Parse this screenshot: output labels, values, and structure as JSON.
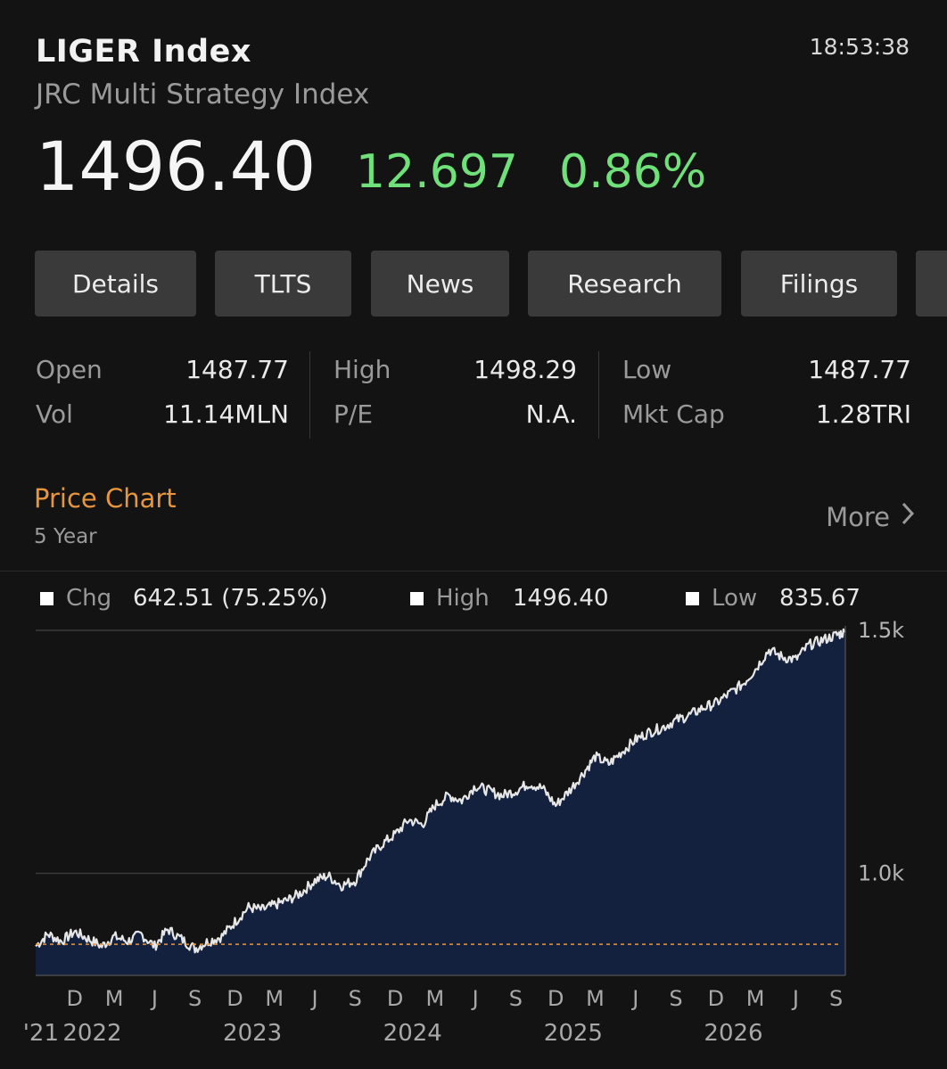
{
  "header": {
    "ticker": "LIGER Index",
    "name": "JRC Multi Strategy Index",
    "time": "18:53:38",
    "price": "1496.40",
    "change": "12.697",
    "change_pct": "0.86%",
    "change_color": "#6fe07a"
  },
  "tabs": [
    {
      "label": "Details"
    },
    {
      "label": "TLTS"
    },
    {
      "label": "News"
    },
    {
      "label": "Research"
    },
    {
      "label": "Filings"
    }
  ],
  "stats": {
    "open_label": "Open",
    "open": "1487.77",
    "high_label": "High",
    "high": "1498.29",
    "low_label": "Low",
    "low": "1487.77",
    "vol_label": "Vol",
    "vol": "11.14MLN",
    "pe_label": "P/E",
    "pe": "N.A.",
    "mktcap_label": "Mkt Cap",
    "mktcap": "1.28TRI"
  },
  "section": {
    "title": "Price Chart",
    "title_color": "#e8963c",
    "period": "5 Year",
    "more_label": "More",
    "more_icon": "chevron-right-icon"
  },
  "chart_stats": {
    "chg_label": "Chg",
    "chg_value": "642.51 (75.25%)",
    "high_label": "High",
    "high_value": "1496.40",
    "low_label": "Low",
    "low_value": "835.67"
  },
  "chart_data": {
    "type": "area",
    "title": "",
    "xlabel": "",
    "ylabel": "",
    "ylim": [
      790,
      1500
    ],
    "yticks": [
      1000,
      1500
    ],
    "ytick_labels": [
      "1.0k",
      "1.5k"
    ],
    "xlim": [
      "2021-09-03",
      "2026-09-22"
    ],
    "xticks": [
      {
        "date": "2021-12-01",
        "label": "D"
      },
      {
        "date": "2022-03-01",
        "label": "M"
      },
      {
        "date": "2022-06-01",
        "label": "J"
      },
      {
        "date": "2022-09-01",
        "label": "S"
      },
      {
        "date": "2022-12-01",
        "label": "D"
      },
      {
        "date": "2023-03-01",
        "label": "M"
      },
      {
        "date": "2023-06-01",
        "label": "J"
      },
      {
        "date": "2023-09-01",
        "label": "S"
      },
      {
        "date": "2023-12-01",
        "label": "D"
      },
      {
        "date": "2024-03-01",
        "label": "M"
      },
      {
        "date": "2024-06-01",
        "label": "J"
      },
      {
        "date": "2024-09-01",
        "label": "S"
      },
      {
        "date": "2024-12-01",
        "label": "D"
      },
      {
        "date": "2025-03-01",
        "label": "M"
      },
      {
        "date": "2025-06-01",
        "label": "J"
      },
      {
        "date": "2025-09-01",
        "label": "S"
      },
      {
        "date": "2025-12-01",
        "label": "D"
      },
      {
        "date": "2026-03-01",
        "label": "M"
      },
      {
        "date": "2026-06-01",
        "label": "J"
      },
      {
        "date": "2026-09-01",
        "label": "S"
      }
    ],
    "year_labels": [
      {
        "date": "2021-09-15",
        "label": "'21"
      },
      {
        "date": "2022-01-10",
        "label": "2022"
      },
      {
        "date": "2023-01-10",
        "label": "2023"
      },
      {
        "date": "2024-01-10",
        "label": "2024"
      },
      {
        "date": "2025-01-10",
        "label": "2025"
      },
      {
        "date": "2026-01-10",
        "label": "2026"
      }
    ],
    "reference_line": {
      "value": 854,
      "color": "#e8963c",
      "style": "dashed"
    },
    "grid": "horizontal",
    "fill_color": "#13213f",
    "line_color": "#e6e6e6",
    "series": [
      {
        "x": [
          "2021-09-03",
          "2021-10-01",
          "2021-11-01",
          "2021-12-01",
          "2022-01-01",
          "2022-02-01",
          "2022-03-01",
          "2022-04-01",
          "2022-05-01",
          "2022-06-01",
          "2022-07-01",
          "2022-08-01",
          "2022-09-01",
          "2022-10-01",
          "2022-11-01",
          "2022-12-01",
          "2023-01-01",
          "2023-02-01",
          "2023-03-01",
          "2023-04-01",
          "2023-05-01",
          "2023-06-01",
          "2023-07-01",
          "2023-08-01",
          "2023-09-01",
          "2023-10-01",
          "2023-11-01",
          "2023-12-01",
          "2024-01-01",
          "2024-02-01",
          "2024-03-01",
          "2024-04-01",
          "2024-05-01",
          "2024-06-01",
          "2024-07-01",
          "2024-08-01",
          "2024-09-01",
          "2024-10-01",
          "2024-11-01",
          "2024-12-01",
          "2025-01-01",
          "2025-02-01",
          "2025-03-01",
          "2025-04-01",
          "2025-05-01",
          "2025-06-01",
          "2025-07-01",
          "2025-08-01",
          "2025-09-01",
          "2025-10-01",
          "2025-11-01",
          "2025-12-01",
          "2026-01-01",
          "2026-02-01",
          "2026-03-01",
          "2026-04-01",
          "2026-05-01",
          "2026-06-01",
          "2026-07-01",
          "2026-08-01",
          "2026-09-01",
          "2026-09-22"
        ],
        "y": [
          850,
          875,
          860,
          880,
          865,
          850,
          870,
          860,
          875,
          850,
          885,
          865,
          845,
          860,
          870,
          900,
          930,
          925,
          935,
          945,
          960,
          985,
          995,
          975,
          985,
          1030,
          1060,
          1080,
          1110,
          1100,
          1140,
          1160,
          1150,
          1180,
          1170,
          1160,
          1170,
          1185,
          1175,
          1140,
          1170,
          1205,
          1240,
          1225,
          1250,
          1275,
          1290,
          1300,
          1315,
          1325,
          1340,
          1350,
          1370,
          1390,
          1420,
          1460,
          1445,
          1440,
          1470,
          1480,
          1490,
          1496.4
        ]
      }
    ]
  }
}
